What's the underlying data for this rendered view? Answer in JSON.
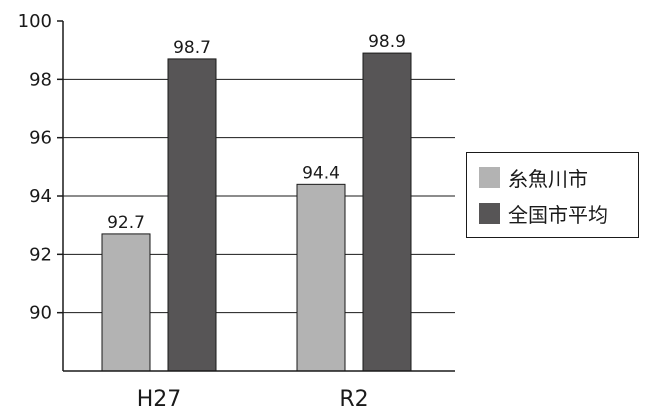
{
  "chart_data": {
    "type": "bar",
    "categories": [
      "H27",
      "R2"
    ],
    "series": [
      {
        "name": "糸魚川市",
        "values": [
          92.7,
          94.4
        ],
        "color": "#b3b3b3"
      },
      {
        "name": "全国市平均",
        "values": [
          98.7,
          98.9
        ],
        "color": "#575556"
      }
    ],
    "data_labels": [
      [
        "92.7",
        "94.4"
      ],
      [
        "98.7",
        "98.9"
      ]
    ],
    "y_ticks": [
      "90",
      "92",
      "94",
      "96",
      "98",
      "100"
    ],
    "y_tick_values": [
      90,
      92,
      94,
      96,
      98,
      100
    ],
    "ylim": [
      88,
      100
    ],
    "grid": true,
    "legend_position": "right",
    "title": "",
    "xlabel": "",
    "ylabel": ""
  }
}
